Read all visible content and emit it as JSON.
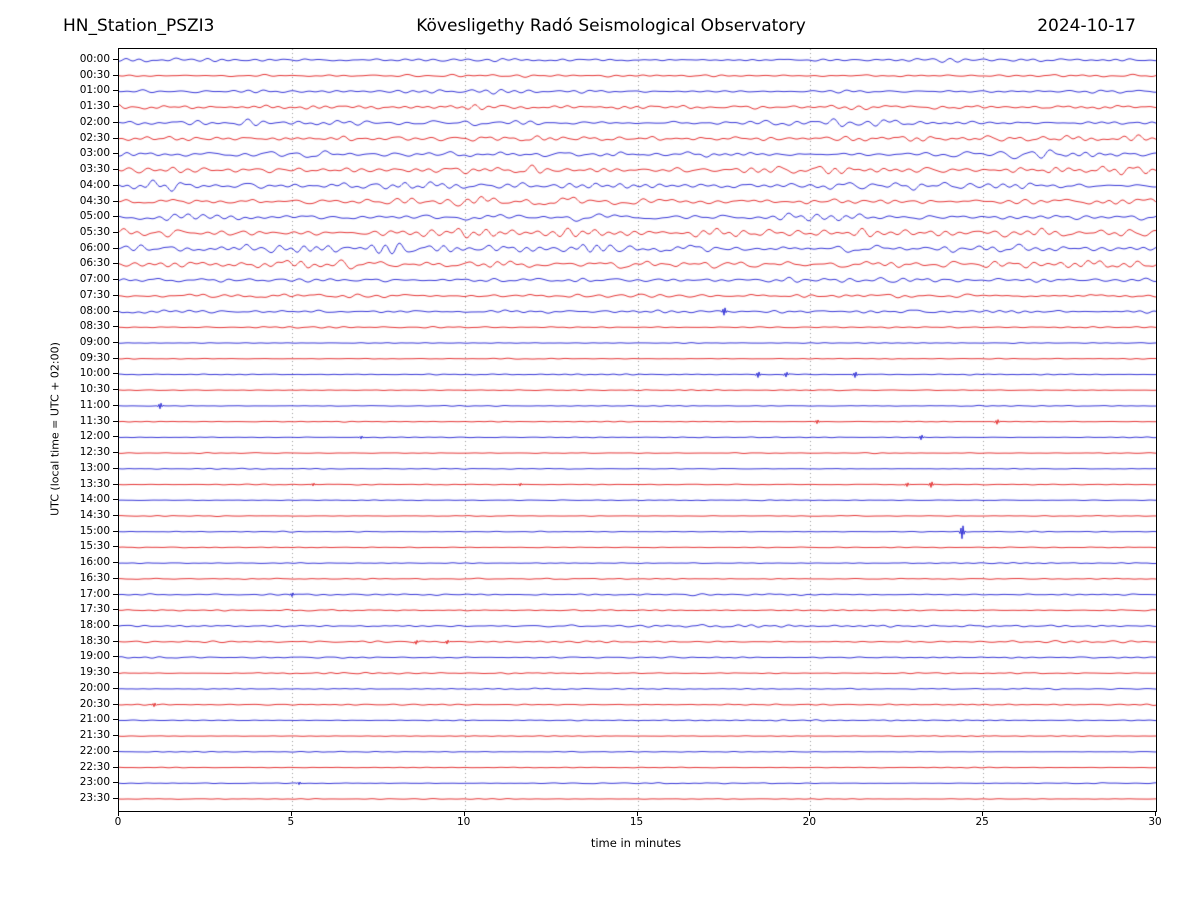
{
  "header": {
    "station": "HN_Station_PSZI3",
    "observatory": "Kövesligethy Radó Seismological Observatory",
    "date": "2024-10-17"
  },
  "axes": {
    "y_label": "UTC (local time = UTC + 02:00)",
    "x_label": "time in minutes",
    "x_range": [
      0,
      30
    ],
    "x_ticks": [
      0,
      5,
      10,
      15,
      20,
      25,
      30
    ],
    "grid": "dotted vertical lines at 5-minute intervals"
  },
  "colors": {
    "blue": "#0000cc",
    "red": "#dd0000",
    "grid": "#999999",
    "axis": "#000000"
  },
  "chart_data": {
    "type": "line",
    "subtype": "helicorder-seismogram",
    "title": "Kövesligethy Radó Seismological Observatory",
    "station": "HN_Station_PSZI3",
    "date": "2024-10-17",
    "xlabel": "time in minutes",
    "ylabel": "UTC (local time = UTC + 02:00)",
    "x_range": [
      0,
      30
    ],
    "row_interval_minutes": 30,
    "amp_unit": "approximate peak trace amplitude in px",
    "spike_unit": "m = minute position, h = approximate spike height in px",
    "rows": [
      {
        "label": "00:00",
        "color": "blue",
        "amp": 2.2,
        "spikes": []
      },
      {
        "label": "00:30",
        "color": "red",
        "amp": 1.6,
        "spikes": []
      },
      {
        "label": "01:00",
        "color": "blue",
        "amp": 2.4,
        "spikes": []
      },
      {
        "label": "01:30",
        "color": "red",
        "amp": 3.2,
        "spikes": []
      },
      {
        "label": "02:00",
        "color": "blue",
        "amp": 3.8,
        "spikes": []
      },
      {
        "label": "02:30",
        "color": "red",
        "amp": 4.2,
        "spikes": []
      },
      {
        "label": "03:00",
        "color": "blue",
        "amp": 4.6,
        "spikes": []
      },
      {
        "label": "03:30",
        "color": "red",
        "amp": 5.5,
        "spikes": []
      },
      {
        "label": "04:00",
        "color": "blue",
        "amp": 5.8,
        "spikes": []
      },
      {
        "label": "04:30",
        "color": "red",
        "amp": 5.2,
        "spikes": []
      },
      {
        "label": "05:00",
        "color": "blue",
        "amp": 5.2,
        "spikes": []
      },
      {
        "label": "05:30",
        "color": "red",
        "amp": 6.5,
        "spikes": []
      },
      {
        "label": "06:00",
        "color": "blue",
        "amp": 6.5,
        "spikes": []
      },
      {
        "label": "06:30",
        "color": "red",
        "amp": 5.5,
        "spikes": []
      },
      {
        "label": "07:00",
        "color": "blue",
        "amp": 3.2,
        "spikes": []
      },
      {
        "label": "07:30",
        "color": "red",
        "amp": 2.8,
        "spikes": []
      },
      {
        "label": "08:00",
        "color": "blue",
        "amp": 2.2,
        "spikes": [
          {
            "m": 17.5,
            "h": 4
          }
        ]
      },
      {
        "label": "08:30",
        "color": "red",
        "amp": 1.1,
        "spikes": []
      },
      {
        "label": "09:00",
        "color": "blue",
        "amp": 0.55,
        "spikes": []
      },
      {
        "label": "09:30",
        "color": "red",
        "amp": 0.55,
        "spikes": []
      },
      {
        "label": "10:00",
        "color": "blue",
        "amp": 0.6,
        "spikes": [
          {
            "m": 18.5,
            "h": 3
          },
          {
            "m": 19.3,
            "h": 2.5
          },
          {
            "m": 21.3,
            "h": 3
          }
        ]
      },
      {
        "label": "10:30",
        "color": "red",
        "amp": 0.6,
        "spikes": []
      },
      {
        "label": "11:00",
        "color": "blue",
        "amp": 0.55,
        "spikes": [
          {
            "m": 1.2,
            "h": 3
          }
        ]
      },
      {
        "label": "11:30",
        "color": "red",
        "amp": 0.55,
        "spikes": [
          {
            "m": 20.2,
            "h": 2
          },
          {
            "m": 25.4,
            "h": 2.5
          }
        ]
      },
      {
        "label": "12:00",
        "color": "blue",
        "amp": 0.55,
        "spikes": [
          {
            "m": 7.0,
            "h": 1.5
          },
          {
            "m": 23.2,
            "h": 2.5
          }
        ]
      },
      {
        "label": "12:30",
        "color": "red",
        "amp": 0.6,
        "spikes": []
      },
      {
        "label": "13:00",
        "color": "blue",
        "amp": 0.55,
        "spikes": []
      },
      {
        "label": "13:30",
        "color": "red",
        "amp": 0.7,
        "spikes": [
          {
            "m": 5.6,
            "h": 1.5
          },
          {
            "m": 11.6,
            "h": 1.5
          },
          {
            "m": 22.8,
            "h": 2
          },
          {
            "m": 23.5,
            "h": 3
          }
        ]
      },
      {
        "label": "14:00",
        "color": "blue",
        "amp": 0.55,
        "spikes": []
      },
      {
        "label": "14:30",
        "color": "red",
        "amp": 0.6,
        "spikes": []
      },
      {
        "label": "15:00",
        "color": "blue",
        "amp": 0.55,
        "spikes": [
          {
            "m": 24.4,
            "h": 7
          }
        ]
      },
      {
        "label": "15:30",
        "color": "red",
        "amp": 0.55,
        "spikes": []
      },
      {
        "label": "16:00",
        "color": "blue",
        "amp": 0.55,
        "spikes": []
      },
      {
        "label": "16:30",
        "color": "red",
        "amp": 0.8,
        "spikes": []
      },
      {
        "label": "17:00",
        "color": "blue",
        "amp": 1.1,
        "spikes": [
          {
            "m": 5.0,
            "h": 2
          }
        ]
      },
      {
        "label": "17:30",
        "color": "red",
        "amp": 1.0,
        "spikes": []
      },
      {
        "label": "18:00",
        "color": "blue",
        "amp": 1.6,
        "spikes": []
      },
      {
        "label": "18:30",
        "color": "red",
        "amp": 1.2,
        "spikes": [
          {
            "m": 8.6,
            "h": 2
          },
          {
            "m": 9.5,
            "h": 2
          }
        ]
      },
      {
        "label": "19:00",
        "color": "blue",
        "amp": 1.1,
        "spikes": []
      },
      {
        "label": "19:30",
        "color": "red",
        "amp": 0.9,
        "spikes": []
      },
      {
        "label": "20:00",
        "color": "blue",
        "amp": 0.9,
        "spikes": []
      },
      {
        "label": "20:30",
        "color": "red",
        "amp": 0.9,
        "spikes": [
          {
            "m": 1.0,
            "h": 2
          }
        ]
      },
      {
        "label": "21:00",
        "color": "blue",
        "amp": 0.65,
        "spikes": []
      },
      {
        "label": "21:30",
        "color": "red",
        "amp": 0.5,
        "spikes": []
      },
      {
        "label": "22:00",
        "color": "blue",
        "amp": 0.55,
        "spikes": []
      },
      {
        "label": "22:30",
        "color": "red",
        "amp": 0.55,
        "spikes": []
      },
      {
        "label": "23:00",
        "color": "blue",
        "amp": 0.6,
        "spikes": [
          {
            "m": 5.2,
            "h": 1.5
          }
        ]
      },
      {
        "label": "23:30",
        "color": "red",
        "amp": 0.5,
        "spikes": []
      }
    ]
  }
}
